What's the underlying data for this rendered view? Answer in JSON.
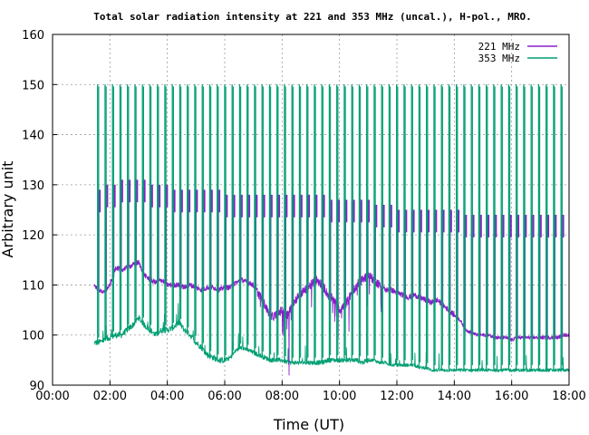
{
  "chart_data": {
    "type": "line",
    "title": "Total solar radiation intensity at 221 and 353 MHz (uncal.), H-pol., MRO.",
    "xlabel": "Time (UT)",
    "ylabel": "Arbitrary unit",
    "x_ticks": [
      "00:00",
      "02:00",
      "04:00",
      "06:00",
      "08:00",
      "10:00",
      "12:00",
      "14:00",
      "16:00",
      "18:00"
    ],
    "y_ticks": [
      "90",
      "100",
      "110",
      "120",
      "130",
      "140",
      "150",
      "160"
    ],
    "xlim_hours": [
      0,
      18
    ],
    "ylim": [
      90,
      160
    ],
    "grid": true,
    "legend_position": "top-right",
    "series": [
      {
        "name": "221 MHz",
        "color": "#8b1ec8",
        "x_hours": [
          1.45,
          1.6,
          1.8,
          2.0,
          2.2,
          2.4,
          2.6,
          2.8,
          3.0,
          3.2,
          3.4,
          3.6,
          3.8,
          4.0,
          4.2,
          4.4,
          4.6,
          4.8,
          5.0,
          5.2,
          5.4,
          5.6,
          5.8,
          6.0,
          6.2,
          6.4,
          6.6,
          6.8,
          7.0,
          7.2,
          7.4,
          7.6,
          7.8,
          8.0,
          8.2,
          8.4,
          8.6,
          8.8,
          9.0,
          9.2,
          9.4,
          9.6,
          9.8,
          10.0,
          10.2,
          10.4,
          10.6,
          10.8,
          11.0,
          11.2,
          11.4,
          11.6,
          11.8,
          12.0,
          12.2,
          12.4,
          12.6,
          12.8,
          13.0,
          13.2,
          13.4,
          13.6,
          13.8,
          14.0,
          14.2,
          14.4,
          14.6,
          14.8,
          15.0,
          15.2,
          15.4,
          15.6,
          15.8,
          16.0,
          16.2,
          16.4,
          16.6,
          16.8,
          17.0,
          17.2,
          17.4,
          17.6,
          17.8,
          18.0
        ],
        "values": [
          110,
          109,
          108.5,
          110,
          113.5,
          113,
          113.5,
          114,
          114.5,
          112,
          111,
          110.5,
          111,
          110,
          110,
          110,
          109.5,
          110,
          109.5,
          109,
          109.5,
          109.5,
          109,
          109.5,
          109.5,
          110.5,
          111,
          110.5,
          110,
          108,
          106,
          103.5,
          104,
          105,
          104,
          106.5,
          108,
          109,
          110,
          111,
          110,
          108,
          107,
          105,
          106,
          108,
          110,
          111,
          112,
          111,
          110,
          109,
          109,
          108.5,
          108,
          107.5,
          108,
          107.5,
          107,
          106.5,
          107,
          106,
          105,
          104,
          103,
          101,
          100.5,
          100,
          100,
          100,
          99.5,
          99.5,
          99.5,
          99,
          99.5,
          99.5,
          99.5,
          99.5,
          99.5,
          99.5,
          99.5,
          99.5,
          100,
          100
        ],
        "spike_peaks": [
          129,
          130,
          130,
          131,
          131,
          131,
          131,
          130,
          130,
          130,
          129,
          129,
          129,
          129,
          129,
          129,
          129,
          128,
          128,
          128,
          128,
          128,
          128,
          128,
          128,
          128,
          128,
          128,
          128,
          128,
          128,
          127,
          127,
          127,
          127,
          127,
          127,
          126,
          126,
          126,
          125,
          125,
          125,
          125,
          125,
          125,
          125,
          125,
          125,
          124,
          124,
          124,
          124,
          124,
          124,
          124,
          124,
          124,
          124,
          124,
          124,
          124,
          124
        ]
      },
      {
        "name": "353 MHz",
        "color": "#009e73",
        "x_hours": [
          1.45,
          1.6,
          1.8,
          2.0,
          2.2,
          2.4,
          2.6,
          2.8,
          3.0,
          3.2,
          3.4,
          3.6,
          3.8,
          4.0,
          4.2,
          4.4,
          4.6,
          4.8,
          5.0,
          5.2,
          5.4,
          5.6,
          5.8,
          6.0,
          6.2,
          6.4,
          6.6,
          6.8,
          7.0,
          7.2,
          7.4,
          7.6,
          7.8,
          8.0,
          8.2,
          8.4,
          8.6,
          8.8,
          9.0,
          9.2,
          9.4,
          9.6,
          9.8,
          10.0,
          10.2,
          10.4,
          10.6,
          10.8,
          11.0,
          11.2,
          11.4,
          11.6,
          11.8,
          12.0,
          12.2,
          12.4,
          12.6,
          12.8,
          13.0,
          13.2,
          13.4,
          13.6,
          13.8,
          14.0,
          14.2,
          14.4,
          14.6,
          14.8,
          15.0,
          15.2,
          15.4,
          15.6,
          15.8,
          16.0,
          16.2,
          16.4,
          16.6,
          16.8,
          17.0,
          17.2,
          17.4,
          17.6,
          17.8,
          18.0
        ],
        "values": [
          98.5,
          98.5,
          99,
          99.5,
          100,
          100,
          101,
          102,
          103.5,
          102,
          101,
          100,
          101,
          101,
          101.5,
          102.5,
          101,
          100,
          98.5,
          97.5,
          96,
          95.5,
          95,
          95,
          95.5,
          97,
          97.5,
          97,
          96.5,
          96,
          95.5,
          95,
          95,
          95,
          94.5,
          94.5,
          94.5,
          94.5,
          94.5,
          94.5,
          94.5,
          95,
          95,
          95,
          95,
          95,
          95,
          94.5,
          95,
          95,
          94.5,
          94.5,
          94,
          94,
          94,
          94,
          94,
          93.5,
          93.5,
          93,
          93,
          93,
          93,
          93,
          93,
          93,
          93,
          93,
          93,
          93,
          93,
          93,
          93,
          93,
          93,
          93,
          93,
          93,
          93,
          93,
          93,
          93,
          93,
          93
        ],
        "spike_peak": 150
      }
    ]
  }
}
